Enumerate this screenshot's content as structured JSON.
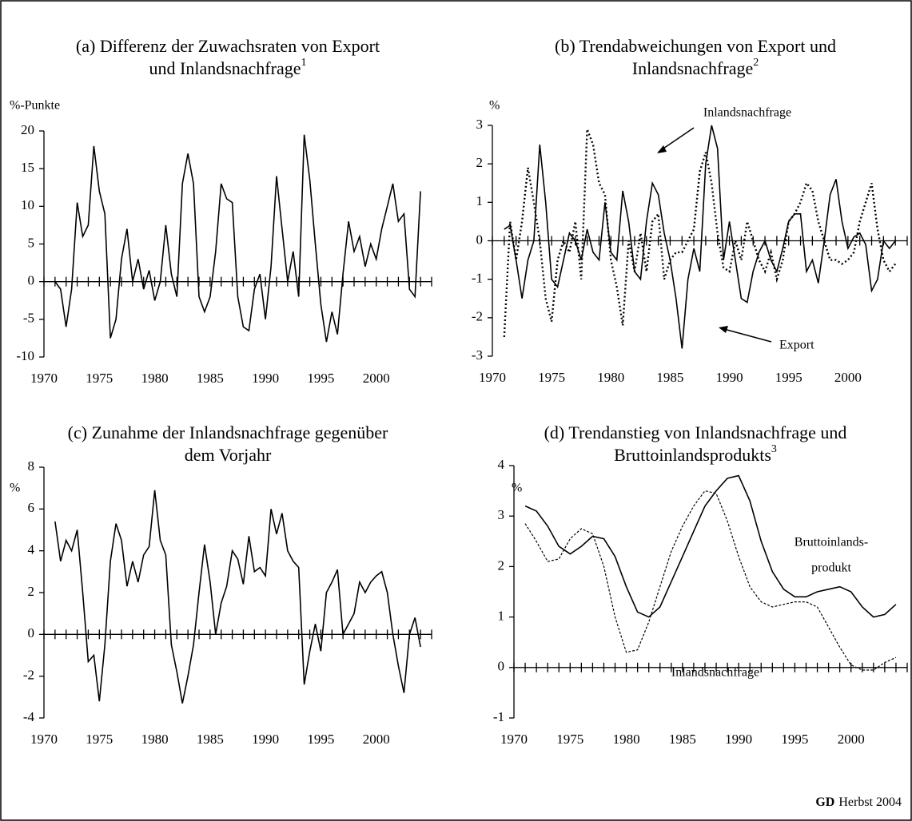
{
  "chart_data": [
    {
      "type": "line",
      "title": [
        "(a) Differenz der Zuwachsraten von Export",
        "und Inlandsnachfrage"
      ],
      "title_note": "1",
      "ylabel": "%-Punkte",
      "xlim": [
        1970,
        2005
      ],
      "xticks": [
        1970,
        1975,
        1980,
        1985,
        1990,
        1995,
        2000
      ],
      "xminor": [
        1970,
        1971,
        1972,
        1973,
        1974,
        1975,
        1976,
        1977,
        1978,
        1979,
        1980,
        1981,
        1982,
        1983,
        1984,
        1985,
        1986,
        1987,
        1988,
        1989,
        1990,
        1991,
        1992,
        1993,
        1994,
        1995,
        1996,
        1997,
        1998,
        1999,
        2000,
        2001,
        2002,
        2003,
        2004,
        2005
      ],
      "ylim": [
        -10,
        20
      ],
      "yticks": [
        -10,
        -5,
        0,
        5,
        10,
        15,
        20
      ],
      "color": "#000000",
      "style": "solid",
      "x": [
        1971,
        1971.5,
        1972,
        1972.5,
        1973,
        1973.5,
        1974,
        1974.5,
        1975,
        1975.5,
        1976,
        1976.5,
        1977,
        1977.5,
        1978,
        1978.5,
        1979,
        1979.5,
        1980,
        1980.5,
        1981,
        1981.5,
        1982,
        1982.5,
        1983,
        1983.5,
        1984,
        1984.5,
        1985,
        1985.5,
        1986,
        1986.5,
        1987,
        1987.5,
        1988,
        1988.5,
        1989,
        1989.5,
        1990,
        1990.5,
        1991,
        1991.5,
        1992,
        1992.5,
        1993,
        1993.5,
        1994,
        1994.5,
        1995,
        1995.5,
        1996,
        1996.5,
        1997,
        1997.5,
        1998,
        1998.5,
        1999,
        1999.5,
        2000,
        2000.5,
        2001,
        2001.5,
        2002,
        2002.5,
        2003,
        2003.5,
        2004
      ],
      "values": [
        0,
        -1,
        -6,
        -1,
        10.5,
        6,
        7.5,
        18,
        12,
        9,
        -7.5,
        -5,
        3,
        7,
        0,
        3,
        -1,
        1.5,
        -2.5,
        0,
        7.5,
        1,
        -2,
        13,
        17,
        13,
        -2,
        -4,
        -2,
        4,
        13,
        11,
        10.5,
        -2,
        -6,
        -6.5,
        -1,
        1,
        -5,
        2,
        14,
        7,
        0,
        4,
        -2,
        19.5,
        13.5,
        5,
        -3,
        -8,
        -4,
        -7,
        1,
        8,
        4,
        6,
        2,
        5,
        3,
        7,
        10,
        13,
        8,
        9,
        -1,
        -2,
        12
      ]
    },
    {
      "type": "line",
      "title": [
        "(b) Trendabweichungen von Export und",
        "Inlandsnachfrage"
      ],
      "title_note": "2",
      "ylabel": "%",
      "xlim": [
        1970,
        2005
      ],
      "xticks": [
        1970,
        1975,
        1980,
        1985,
        1990,
        1995,
        2000
      ],
      "xminor": [
        1970,
        1971,
        1972,
        1973,
        1974,
        1975,
        1976,
        1977,
        1978,
        1979,
        1980,
        1981,
        1982,
        1983,
        1984,
        1985,
        1986,
        1987,
        1988,
        1989,
        1990,
        1991,
        1992,
        1993,
        1994,
        1995,
        1996,
        1997,
        1998,
        1999,
        2000,
        2001,
        2002,
        2003,
        2004,
        2005
      ],
      "ylim": [
        -3,
        3
      ],
      "yticks": [
        -3,
        -2,
        -1,
        0,
        1,
        2,
        3
      ],
      "x": [
        1971,
        1971.5,
        1972,
        1972.5,
        1973,
        1973.5,
        1974,
        1974.5,
        1975,
        1975.5,
        1976,
        1976.5,
        1977,
        1977.5,
        1978,
        1978.5,
        1979,
        1979.5,
        1980,
        1980.5,
        1981,
        1981.5,
        1982,
        1982.5,
        1983,
        1983.5,
        1984,
        1984.5,
        1985,
        1985.5,
        1986,
        1986.5,
        1987,
        1987.5,
        1988,
        1988.5,
        1989,
        1989.5,
        1990,
        1990.5,
        1991,
        1991.5,
        1992,
        1992.5,
        1993,
        1993.5,
        1994,
        1994.5,
        1995,
        1995.5,
        1996,
        1996.5,
        1997,
        1997.5,
        1998,
        1998.5,
        1999,
        1999.5,
        2000,
        2000.5,
        2001,
        2001.5,
        2002,
        2002.5,
        2003,
        2003.5,
        2004
      ],
      "series": [
        {
          "color": "#000000",
          "style": "solid",
          "values": [
            0.3,
            0.4,
            -0.5,
            -1.5,
            -0.5,
            0,
            2.5,
            1,
            -1,
            -1.2,
            -0.5,
            0.2,
            0,
            -0.5,
            0.3,
            -0.3,
            -0.5,
            1,
            -0.3,
            -0.5,
            1.3,
            0.5,
            -0.8,
            -1,
            0.5,
            1.5,
            1.2,
            0.2,
            -0.5,
            -1.5,
            -2.8,
            -1,
            -0.2,
            -0.8,
            2,
            3,
            2.4,
            -0.5,
            0.5,
            -0.5,
            -1.5,
            -1.6,
            -0.8,
            -0.3,
            0,
            -0.5,
            -0.8,
            -0.2,
            0.5,
            0.7,
            0.7,
            -0.8,
            -0.5,
            -1.1,
            0,
            1.2,
            1.6,
            0.5,
            -0.2,
            0.1,
            0.2,
            -0.1,
            -1.3,
            -1,
            0,
            -0.2,
            0
          ]
        },
        {
          "color": "#000000",
          "style": "dotted",
          "values": [
            -2.5,
            0.5,
            -0.5,
            0.5,
            1.9,
            1,
            0,
            -1.5,
            -2.1,
            -0.5,
            0,
            -0.3,
            0.5,
            -1,
            2.9,
            2.5,
            1.5,
            1.2,
            -0.5,
            -1.2,
            -2.2,
            0,
            -0.8,
            0.2,
            -0.8,
            0.5,
            0.7,
            -1,
            -0.5,
            -0.3,
            -0.3,
            0,
            0.3,
            1.8,
            2.3,
            1.5,
            0.2,
            -0.7,
            -0.8,
            0,
            -0.5,
            0.5,
            0,
            -0.5,
            -0.8,
            -0.3,
            -1,
            -0.5,
            0.5,
            0.7,
            1,
            1.5,
            1.3,
            0.5,
            0,
            -0.5,
            -0.5,
            -0.6,
            -0.5,
            -0.3,
            0.5,
            1,
            1.5,
            0.3,
            -0.5,
            -0.8,
            -0.6
          ]
        }
      ],
      "annotations": [
        "Inlandsnachfrage",
        "Export"
      ]
    },
    {
      "type": "line",
      "title": [
        "(c) Zunahme der Inlandsnachfrage gegenüber",
        "dem Vorjahr"
      ],
      "ylabel": "%",
      "xlim": [
        1970,
        2005
      ],
      "xticks": [
        1970,
        1975,
        1980,
        1985,
        1990,
        1995,
        2000
      ],
      "xminor": [
        1970,
        1971,
        1972,
        1973,
        1974,
        1975,
        1976,
        1977,
        1978,
        1979,
        1980,
        1981,
        1982,
        1983,
        1984,
        1985,
        1986,
        1987,
        1988,
        1989,
        1990,
        1991,
        1992,
        1993,
        1994,
        1995,
        1996,
        1997,
        1998,
        1999,
        2000,
        2001,
        2002,
        2003,
        2004,
        2005
      ],
      "ylim": [
        -4,
        8
      ],
      "yticks": [
        -4,
        -2,
        0,
        2,
        4,
        6,
        8
      ],
      "color": "#000000",
      "style": "solid",
      "x": [
        1971,
        1971.5,
        1972,
        1972.5,
        1973,
        1973.5,
        1974,
        1974.5,
        1975,
        1975.5,
        1976,
        1976.5,
        1977,
        1977.5,
        1978,
        1978.5,
        1979,
        1979.5,
        1980,
        1980.5,
        1981,
        1981.5,
        1982,
        1982.5,
        1983,
        1983.5,
        1984,
        1984.5,
        1985,
        1985.5,
        1986,
        1986.5,
        1987,
        1987.5,
        1988,
        1988.5,
        1989,
        1989.5,
        1990,
        1990.5,
        1991,
        1991.5,
        1992,
        1992.5,
        1993,
        1993.5,
        1994,
        1994.5,
        1995,
        1995.5,
        1996,
        1996.5,
        1997,
        1997.5,
        1998,
        1998.5,
        1999,
        1999.5,
        2000,
        2000.5,
        2001,
        2001.5,
        2002,
        2002.5,
        2003,
        2003.5,
        2004
      ],
      "values": [
        5.4,
        3.5,
        4.5,
        4,
        5,
        2,
        -1.3,
        -1,
        -3.2,
        -0.5,
        3.5,
        5.3,
        4.5,
        2.3,
        3.5,
        2.5,
        3.8,
        4.2,
        6.9,
        4.5,
        3.8,
        -0.5,
        -1.8,
        -3.3,
        -2,
        -0.5,
        2,
        4.3,
        2.5,
        0,
        1.5,
        2.3,
        4,
        3.6,
        2.4,
        4.7,
        3,
        3.2,
        2.8,
        6,
        4.8,
        5.8,
        4,
        3.5,
        3.2,
        -2.4,
        -0.8,
        0.5,
        -0.8,
        2,
        2.5,
        3.1,
        0,
        0.5,
        1,
        2.5,
        2,
        2.5,
        2.8,
        3,
        2,
        0,
        -1.5,
        -2.8,
        0,
        0.8,
        -0.6
      ]
    },
    {
      "type": "line",
      "title": [
        "(d) Trendanstieg von Inlandsnachfrage und",
        "Bruttoinlandsprodukts"
      ],
      "title_note": "3",
      "ylabel": "%",
      "xlim": [
        1970,
        2005
      ],
      "xticks": [
        1970,
        1975,
        1980,
        1985,
        1990,
        1995,
        2000
      ],
      "xminor": [
        1970,
        1971,
        1972,
        1973,
        1974,
        1975,
        1976,
        1977,
        1978,
        1979,
        1980,
        1981,
        1982,
        1983,
        1984,
        1985,
        1986,
        1987,
        1988,
        1989,
        1990,
        1991,
        1992,
        1993,
        1994,
        1995,
        1996,
        1997,
        1998,
        1999,
        2000,
        2001,
        2002,
        2003,
        2004,
        2005
      ],
      "ylim": [
        -1,
        4
      ],
      "yticks": [
        -1,
        0,
        1,
        2,
        3,
        4
      ],
      "x": [
        1971,
        1972,
        1973,
        1974,
        1975,
        1976,
        1977,
        1978,
        1979,
        1980,
        1981,
        1982,
        1983,
        1984,
        1985,
        1986,
        1987,
        1988,
        1989,
        1990,
        1991,
        1992,
        1993,
        1994,
        1995,
        1996,
        1997,
        1998,
        1999,
        2000,
        2001,
        2002,
        2003,
        2004
      ],
      "series": [
        {
          "color": "#000000",
          "style": "solid",
          "values": [
            3.2,
            3.1,
            2.8,
            2.4,
            2.25,
            2.4,
            2.6,
            2.55,
            2.2,
            1.6,
            1.1,
            1.0,
            1.2,
            1.7,
            2.2,
            2.7,
            3.2,
            3.5,
            3.75,
            3.8,
            3.3,
            2.5,
            1.9,
            1.55,
            1.4,
            1.4,
            1.5,
            1.55,
            1.6,
            1.5,
            1.2,
            1.0,
            1.05,
            1.25
          ]
        },
        {
          "color": "#000000",
          "style": "dashed",
          "values": [
            2.85,
            2.5,
            2.1,
            2.15,
            2.55,
            2.75,
            2.65,
            2.0,
            1.0,
            0.3,
            0.35,
            0.9,
            1.6,
            2.3,
            2.8,
            3.2,
            3.5,
            3.45,
            2.9,
            2.2,
            1.6,
            1.3,
            1.2,
            1.25,
            1.3,
            1.3,
            1.2,
            0.8,
            0.4,
            0.05,
            -0.05,
            -0.05,
            0.1,
            0.2
          ]
        }
      ],
      "annotations": [
        "Bruttoinlands-",
        "produkt",
        "Inlandsnachfrage"
      ]
    }
  ],
  "credit": {
    "bold": "GD",
    "text": "Herbst 2004"
  }
}
